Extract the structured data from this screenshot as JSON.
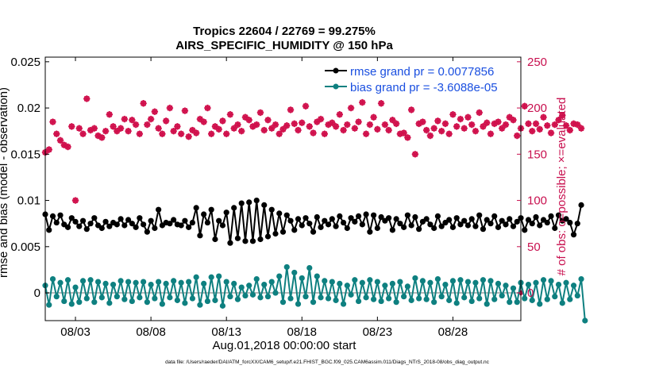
{
  "chart_data": {
    "type": "line",
    "title_line1": "Tropics 22604 / 22769 = 99.275%",
    "title_line2": "AIRS_SPECIFIC_HUMIDITY @ 150 hPa",
    "xlabel": "Aug.01,2018 00:00:00 start",
    "ylabel_left": "rmse and bias (model - observation)",
    "ylabel_right": "# of obs: o=possible; ×=evaluated",
    "footnote": "data file: /Users/raeder/DAI/ATM_forcXX/CAM6_setup/f.e21.FHIST_BGC.f09_025.CAM6assim.011/Diags_NTrS_2018-08/obs_diag_output.nc",
    "xlim": [
      1.0,
      32.5
    ],
    "ylim_left": [
      -0.003,
      0.0255
    ],
    "ylim_right": [
      -30,
      255
    ],
    "x_ticks": [
      3,
      8,
      13,
      18,
      23,
      28
    ],
    "x_tick_labels": [
      "08/03",
      "08/08",
      "08/13",
      "08/18",
      "08/23",
      "08/28"
    ],
    "y_left_ticks": [
      0,
      0.005,
      0.01,
      0.015,
      0.02,
      0.025
    ],
    "y_left_tick_labels": [
      "0",
      "0.005",
      "0.01",
      "0.015",
      "0.02",
      "0.025"
    ],
    "y_right_ticks": [
      0,
      50,
      100,
      150,
      200,
      250
    ],
    "y_right_tick_labels": [
      "0",
      "50",
      "100",
      "150",
      "200",
      "250"
    ],
    "x_start": 1.0,
    "x_step": 0.25,
    "series": [
      {
        "name": "rmse grand pr = 0.0077856",
        "color": "#000000",
        "values": [
          0.0085,
          0.0068,
          0.0083,
          0.0076,
          0.0084,
          0.0074,
          0.0071,
          0.0081,
          0.0077,
          0.0072,
          0.0078,
          0.0069,
          0.0075,
          0.0081,
          0.0073,
          0.007,
          0.0077,
          0.0072,
          0.0076,
          0.0074,
          0.008,
          0.0073,
          0.0079,
          0.0075,
          0.0071,
          0.0081,
          0.0074,
          0.0066,
          0.0078,
          0.007,
          0.009,
          0.0073,
          0.0076,
          0.0075,
          0.0079,
          0.0074,
          0.0073,
          0.0078,
          0.0071,
          0.0076,
          0.0092,
          0.0062,
          0.0085,
          0.0076,
          0.009,
          0.0058,
          0.0078,
          0.0073,
          0.0087,
          0.0054,
          0.0092,
          0.0059,
          0.0097,
          0.0056,
          0.0098,
          0.0056,
          0.01,
          0.0058,
          0.0095,
          0.0061,
          0.009,
          0.0064,
          0.0086,
          0.0066,
          0.0084,
          0.0078,
          0.0068,
          0.008,
          0.0073,
          0.0081,
          0.0075,
          0.0066,
          0.0082,
          0.0071,
          0.0078,
          0.0074,
          0.008,
          0.0072,
          0.0083,
          0.0076,
          0.007,
          0.0081,
          0.0077,
          0.0083,
          0.0074,
          0.0085,
          0.0066,
          0.0084,
          0.007,
          0.0082,
          0.0078,
          0.0081,
          0.0068,
          0.008,
          0.0075,
          0.0071,
          0.0084,
          0.0073,
          0.0082,
          0.0069,
          0.0077,
          0.008,
          0.0074,
          0.007,
          0.0083,
          0.0072,
          0.0076,
          0.0079,
          0.0071,
          0.0081,
          0.0074,
          0.0078,
          0.0073,
          0.008,
          0.0072,
          0.0084,
          0.0069,
          0.0079,
          0.0075,
          0.0083,
          0.0071,
          0.0078,
          0.0074,
          0.008,
          0.0072,
          0.0077,
          0.0081,
          0.0068,
          0.0079,
          0.0075,
          0.0082,
          0.0073,
          0.0079,
          0.0076,
          0.0083,
          0.007,
          0.0084,
          0.0078,
          0.008,
          0.0076,
          0.0063,
          0.0075,
          0.0095
        ]
      },
      {
        "name": "bias grand pr = -3.6088e-05",
        "color": "#0e8080",
        "values": [
          0.0008,
          -0.0013,
          0.0015,
          -0.0004,
          0.0011,
          -0.0009,
          0.0014,
          -0.0012,
          0.0006,
          -0.001,
          0.0013,
          -0.0006,
          0.0014,
          -0.001,
          0.0012,
          -0.0005,
          0.001,
          -0.0011,
          0.0009,
          -0.0004,
          0.0013,
          -0.0007,
          0.0012,
          -0.0009,
          0.0011,
          -0.0005,
          0.0012,
          -0.001,
          0.0009,
          -0.0006,
          0.0012,
          -0.0012,
          0.001,
          -0.0005,
          0.0013,
          -0.0008,
          0.0011,
          -0.0011,
          0.0012,
          -0.0006,
          0.0017,
          -0.0013,
          0.001,
          -0.0009,
          0.0017,
          -0.0008,
          0.0018,
          -0.0014,
          0.0012,
          -0.0004,
          0.001,
          -0.0007,
          0.0006,
          -0.0003,
          0.0008,
          -0.0002,
          0.0015,
          -0.0005,
          0.0009,
          -0.0004,
          0.0012,
          0.0,
          0.0018,
          -0.001,
          0.0028,
          -0.0006,
          0.0022,
          -0.0012,
          0.0016,
          -0.0004,
          0.0027,
          -0.001,
          0.0018,
          -0.0005,
          0.0013,
          -0.0006,
          0.0012,
          -0.0008,
          0.001,
          -0.0012,
          0.0008,
          -0.0002,
          0.0014,
          -0.0009,
          0.0011,
          -0.0005,
          0.0014,
          -0.0007,
          0.0012,
          -0.0009,
          0.0008,
          -0.0006,
          0.001,
          -0.001,
          0.0012,
          -0.0004,
          0.0007,
          -0.0008,
          0.0016,
          -0.0006,
          0.0013,
          -0.0007,
          0.0011,
          -0.001,
          0.0015,
          -0.0004,
          0.0009,
          -0.0008,
          0.0013,
          -0.0011,
          0.0014,
          -0.0005,
          0.0012,
          -0.0009,
          0.0011,
          -0.0006,
          0.0014,
          -0.0012,
          0.0013,
          -0.0007,
          0.001,
          -0.0003,
          0.0008,
          -0.001,
          0.0005,
          -0.001,
          0.0011,
          -0.0006,
          0.0009,
          -0.0008,
          0.0011,
          -0.0012,
          0.0014,
          -0.0007,
          0.0013,
          -0.0004,
          0.0009,
          -0.0011,
          0.0011,
          -0.0007,
          0.0008,
          -0.0003,
          0.0015,
          -0.003
        ]
      },
      {
        "name": "obs evaluated",
        "color": "#d0104c",
        "values": [
          152,
          155,
          185,
          172,
          165,
          160,
          158,
          180,
          100,
          178,
          172,
          210,
          176,
          178,
          170,
          168,
          175,
          193,
          180,
          175,
          178,
          188,
          175,
          187,
          182,
          172,
          205,
          182,
          188,
          196,
          178,
          172,
          186,
          200,
          175,
          180,
          172,
          197,
          169,
          176,
          173,
          188,
          185,
          200,
          172,
          180,
          177,
          186,
          172,
          193,
          178,
          182,
          175,
          190,
          187,
          180,
          182,
          195,
          176,
          187,
          178,
          182,
          172,
          177,
          181,
          198,
          183,
          176,
          184,
          202,
          180,
          173,
          185,
          188,
          172,
          182,
          184,
          180,
          193,
          176,
          182,
          200,
          178,
          185,
          206,
          172,
          182,
          190,
          177,
          205,
          182,
          176,
          187,
          183,
          172,
          173,
          168,
          198,
          150,
          183,
          185,
          176,
          170,
          178,
          186,
          175,
          183,
          172,
          193,
          180,
          188,
          178,
          190,
          182,
          175,
          195,
          180,
          184,
          172,
          183,
          185,
          178,
          182,
          190,
          187,
          170,
          178,
          202,
          183,
          175,
          183,
          177,
          190,
          181,
          173,
          182,
          187,
          192,
          181,
          176,
          183,
          182,
          178
        ]
      }
    ],
    "legend": [
      "rmse grand pr = 0.0077856",
      "bias grand pr = -3.6088e-05"
    ],
    "legend_location": "top-right",
    "zero_line": true
  }
}
